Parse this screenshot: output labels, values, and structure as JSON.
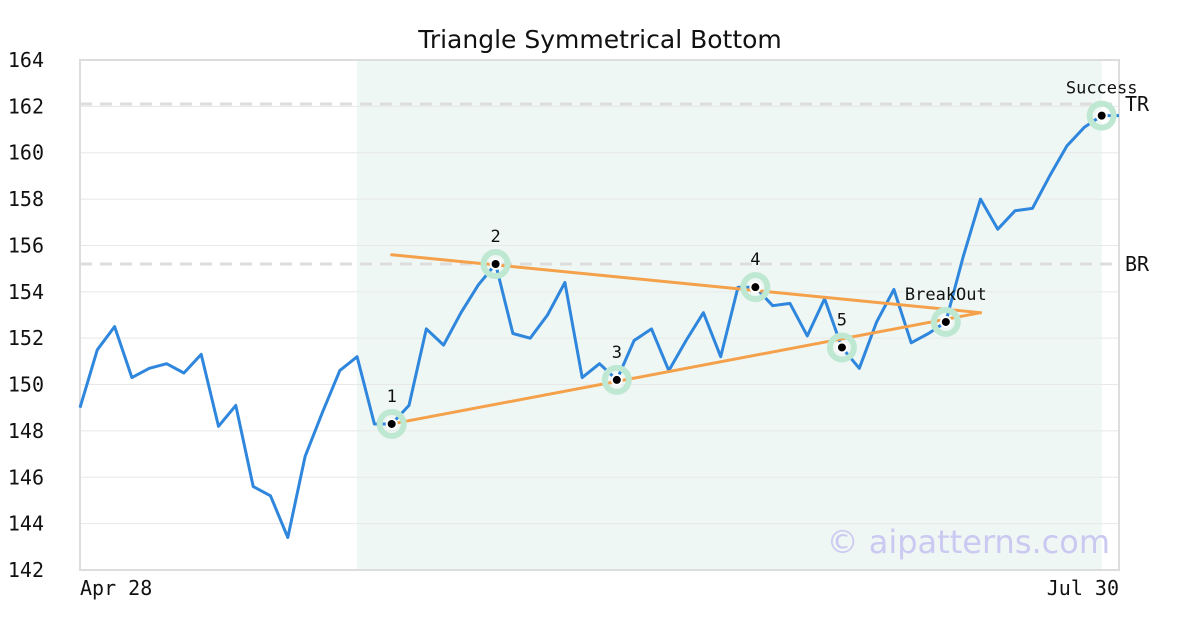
{
  "chart_data": {
    "type": "line",
    "title": "Triangle Symmetrical Bottom",
    "xlabel": "",
    "ylabel": "",
    "ylim": [
      142,
      164
    ],
    "yticks": [
      142,
      144,
      146,
      148,
      150,
      152,
      154,
      156,
      158,
      160,
      162,
      164
    ],
    "x_tick_labels": [
      "Apr 28",
      "Jul 30"
    ],
    "grid": true,
    "series": [
      {
        "values": [
          149.0,
          151.5,
          152.5,
          150.3,
          150.7,
          150.9,
          150.5,
          151.3,
          148.2,
          149.1,
          145.6,
          145.2,
          143.4,
          146.9,
          148.8,
          150.6,
          151.2,
          148.3,
          148.3,
          149.1,
          152.4,
          151.7,
          153.1,
          154.3,
          155.2,
          152.2,
          152.0,
          153.0,
          154.4,
          150.3,
          150.9,
          150.2,
          151.9,
          152.4,
          150.6,
          151.9,
          153.1,
          151.2,
          154.2,
          154.2,
          153.4,
          153.5,
          152.1,
          153.7,
          151.6,
          150.7,
          152.7,
          154.1,
          151.8,
          152.2,
          152.7,
          155.5,
          158.0,
          156.7,
          157.5,
          157.6,
          159.0,
          160.3,
          161.1,
          161.6,
          161.6
        ]
      }
    ],
    "highlight_range": {
      "start_index": 16,
      "end_index": 59
    },
    "reference_lines": [
      {
        "label": "TR",
        "value": 162.1
      },
      {
        "label": "BR",
        "value": 155.2
      }
    ],
    "trendlines": [
      {
        "from": {
          "index": 18,
          "value": 155.6
        },
        "to": {
          "index": 52,
          "value": 153.1
        }
      },
      {
        "from": {
          "index": 18,
          "value": 148.3
        },
        "to": {
          "index": 52,
          "value": 153.1
        }
      }
    ],
    "annotations": [
      {
        "label": "1",
        "index": 18,
        "value": 148.3
      },
      {
        "label": "2",
        "index": 24,
        "value": 155.2
      },
      {
        "label": "3",
        "index": 31,
        "value": 150.2
      },
      {
        "label": "4",
        "index": 39,
        "value": 154.2
      },
      {
        "label": "5",
        "index": 44,
        "value": 151.6
      },
      {
        "label": "BreakOut",
        "index": 50,
        "value": 152.7
      },
      {
        "label": "Success",
        "index": 59,
        "value": 161.6
      }
    ],
    "watermark": "© aipatterns.com",
    "colors": {
      "line": "#2f86dd",
      "trend": "#f5a04a",
      "highlight": "#eef7f3",
      "marker_ring": "#bfe8d3",
      "reference": "#dddddd",
      "grid": "#e8e8e8",
      "frame": "#dddddd"
    }
  }
}
